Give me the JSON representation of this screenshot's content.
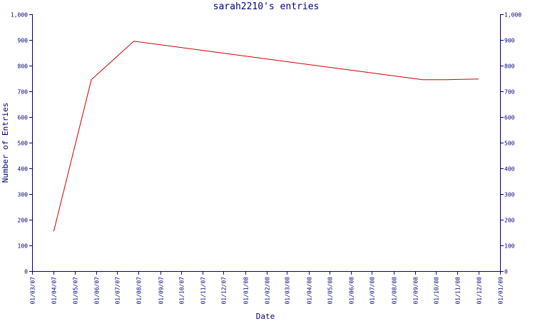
{
  "chart_data": {
    "type": "line",
    "title": "sarah2210's entries",
    "xlabel": "Date",
    "ylabel": "Number of Entries",
    "ylim": [
      0,
      1000
    ],
    "xlim": [
      "2007-03-01",
      "2009-01-01"
    ],
    "y_ticks": [
      0,
      100,
      200,
      300,
      400,
      500,
      600,
      700,
      800,
      900,
      1000
    ],
    "y_tick_labels": [
      "0",
      "100",
      "200",
      "300",
      "400",
      "500",
      "600",
      "700",
      "800",
      "900",
      "1,000"
    ],
    "x_ticks": [
      "2007-03-01",
      "2007-04-01",
      "2007-05-01",
      "2007-06-01",
      "2007-07-01",
      "2007-08-01",
      "2007-09-01",
      "2007-10-01",
      "2007-11-01",
      "2007-12-01",
      "2008-01-01",
      "2008-02-01",
      "2008-03-01",
      "2008-04-01",
      "2008-05-01",
      "2008-06-01",
      "2008-07-01",
      "2008-08-01",
      "2008-09-01",
      "2008-10-01",
      "2008-11-01",
      "2008-12-01",
      "2009-01-01"
    ],
    "x_tick_labels": [
      "01/03/07",
      "01/04/07",
      "01/05/07",
      "01/06/07",
      "01/07/07",
      "01/08/07",
      "01/09/07",
      "01/10/07",
      "01/11/07",
      "01/12/07",
      "01/01/08",
      "01/02/08",
      "01/03/08",
      "01/04/08",
      "01/05/08",
      "01/06/08",
      "01/07/08",
      "01/08/08",
      "01/09/08",
      "01/10/08",
      "01/11/08",
      "01/12/08",
      "01/01/09"
    ],
    "grid": false,
    "series": [
      {
        "color": "#cc0000",
        "x": [
          "2007-04-01",
          "2007-05-25",
          "2007-07-25",
          "2008-09-12",
          "2008-10-15",
          "2008-12-01"
        ],
        "y": [
          155,
          745,
          895,
          745,
          745,
          748
        ]
      }
    ]
  }
}
